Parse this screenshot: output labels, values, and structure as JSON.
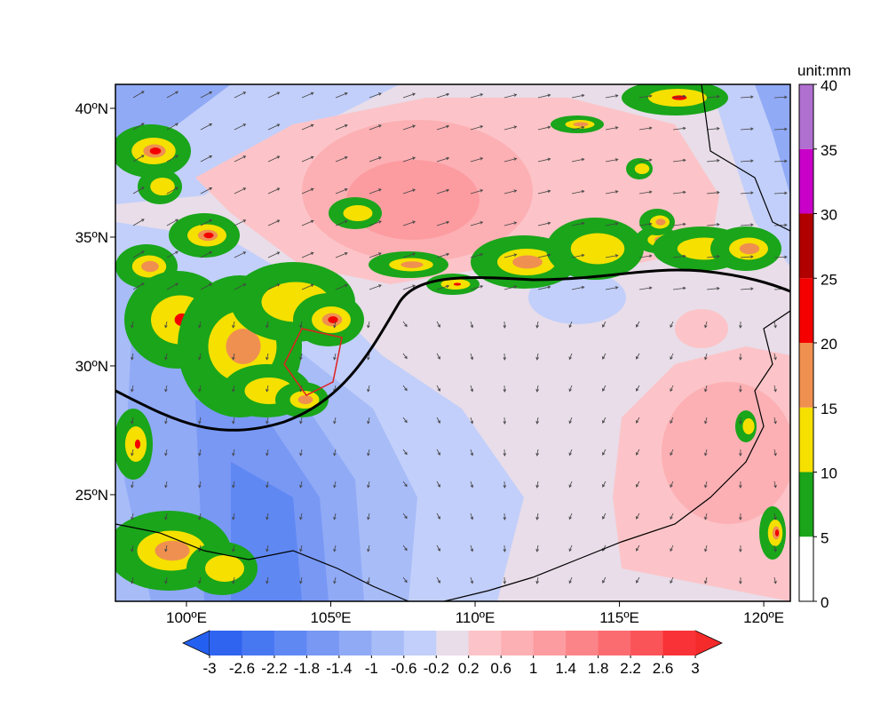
{
  "map": {
    "lon_range": [
      97.54,
      120.92
    ],
    "lat_range": [
      20.86,
      40.93
    ],
    "lon_ticks": [
      {
        "value": 100,
        "label": "100ºE"
      },
      {
        "value": 105,
        "label": "105ºE"
      },
      {
        "value": 110,
        "label": "110ºE"
      },
      {
        "value": 115,
        "label": "115ºE"
      },
      {
        "value": 120,
        "label": "120ºE"
      }
    ],
    "lat_ticks": [
      {
        "value": 25,
        "label": "25ºN"
      },
      {
        "value": 30,
        "label": "30ºN"
      },
      {
        "value": 35,
        "label": "35ºN"
      },
      {
        "value": 40,
        "label": "40ºN"
      }
    ]
  },
  "precip_colorbar": {
    "title": "unit:mm",
    "ticks": [
      0,
      5,
      10,
      15,
      20,
      25,
      30,
      35,
      40
    ],
    "colors": [
      "#ffffff",
      "#1aa51a",
      "#f5e000",
      "#f09050",
      "#f50000",
      "#b00000",
      "#c800c8",
      "#b070d0"
    ]
  },
  "anomaly_colorbar": {
    "ticks": [
      -3,
      -2.6,
      -2.2,
      -1.8,
      -1.4,
      -1,
      -0.6,
      -0.2,
      0.2,
      0.6,
      1,
      1.4,
      1.8,
      2.2,
      2.6,
      3
    ],
    "colors": [
      "#2f64f0",
      "#4877f2",
      "#5f88f3",
      "#7898f4",
      "#90aaf6",
      "#a8bcf8",
      "#c2cffa",
      "#e8dde9",
      "#fcc4c8",
      "#fcb0b4",
      "#fc9ca0",
      "#fb8488",
      "#fb6c70",
      "#fb5458",
      "#f83236"
    ],
    "extend_colors": [
      "#2460f0",
      "#f52a2a"
    ]
  }
}
